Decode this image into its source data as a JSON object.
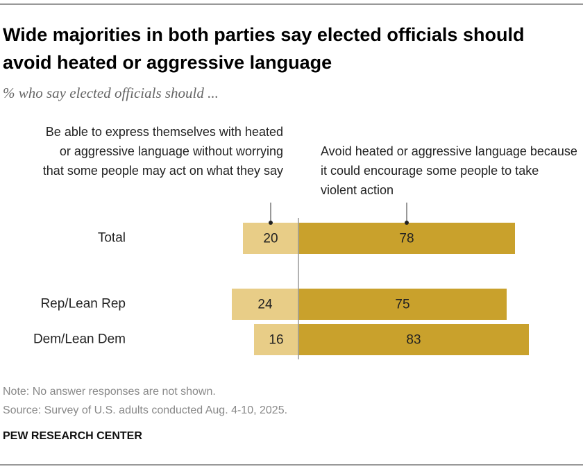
{
  "chart_data": {
    "type": "diverging_bar",
    "title": "Wide majorities in both parties say elected officials should avoid heated or aggressive language",
    "subtitle": "% who say elected officials should ...",
    "categories": [
      "Total",
      "Rep/Lean Rep",
      "Dem/Lean Dem"
    ],
    "series": [
      {
        "name": "Be able to express themselves with heated or aggressive language without worrying that some people may act on what they say",
        "color": "#e8cd87",
        "side": "left",
        "values": [
          20,
          24,
          16
        ]
      },
      {
        "name": "Avoid heated or aggressive language because it could encourage some people to take violent action",
        "color": "#c9a12c",
        "side": "right",
        "values": [
          78,
          75,
          83
        ]
      }
    ],
    "note": "Note: No answer responses are not shown.",
    "source": "Source: Survey of U.S. adults conducted Aug. 4-10, 2025.",
    "credit": "PEW RESEARCH CENTER"
  }
}
